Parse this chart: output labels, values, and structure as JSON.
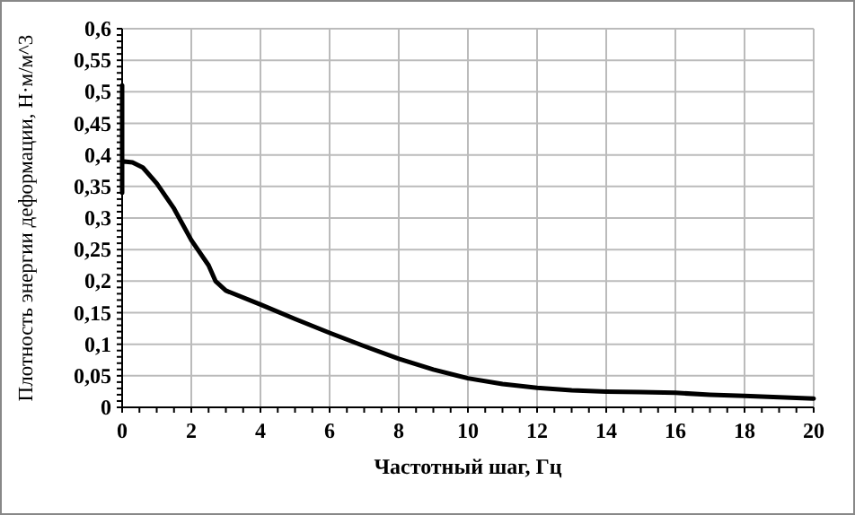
{
  "chart_data": {
    "type": "line",
    "xlabel": "Частотный шаг, Гц",
    "ylabel": "Плотность энергии деформации, Н·м/м^3",
    "x": [
      0,
      0,
      0,
      0.3,
      0.6,
      1,
      1.5,
      2,
      2.5,
      2.7,
      3,
      4,
      5,
      6,
      7,
      8,
      9,
      10,
      11,
      12,
      13,
      14,
      15,
      16,
      17,
      18,
      19,
      20
    ],
    "series": [
      {
        "color": "#000000",
        "values": [
          0.51,
          0.34,
          0.39,
          0.388,
          0.38,
          0.355,
          0.315,
          0.265,
          0.225,
          0.2,
          0.185,
          0.163,
          0.14,
          0.118,
          0.097,
          0.077,
          0.06,
          0.046,
          0.037,
          0.031,
          0.027,
          0.025,
          0.024,
          0.023,
          0.02,
          0.018,
          0.016,
          0.014
        ]
      }
    ],
    "xlim": [
      0,
      20
    ],
    "xticks": [
      0,
      2,
      4,
      6,
      8,
      10,
      12,
      14,
      16,
      18,
      20
    ],
    "ylim": [
      0,
      0.6
    ],
    "yticks": [
      {
        "value": 0,
        "label": "0"
      },
      {
        "value": 0.05,
        "label": "0,05"
      },
      {
        "value": 0.1,
        "label": "0,1"
      },
      {
        "value": 0.15,
        "label": "0,15"
      },
      {
        "value": 0.2,
        "label": "0,2"
      },
      {
        "value": 0.25,
        "label": "0,25"
      },
      {
        "value": 0.3,
        "label": "0,3"
      },
      {
        "value": 0.35,
        "label": "0,35"
      },
      {
        "value": 0.4,
        "label": "0,4"
      },
      {
        "value": 0.45,
        "label": "0,45"
      },
      {
        "value": 0.5,
        "label": "0,5"
      },
      {
        "value": 0.55,
        "label": "0,55"
      },
      {
        "value": 0.6,
        "label": "0,6"
      }
    ],
    "grid": true,
    "line_style": "solid"
  }
}
